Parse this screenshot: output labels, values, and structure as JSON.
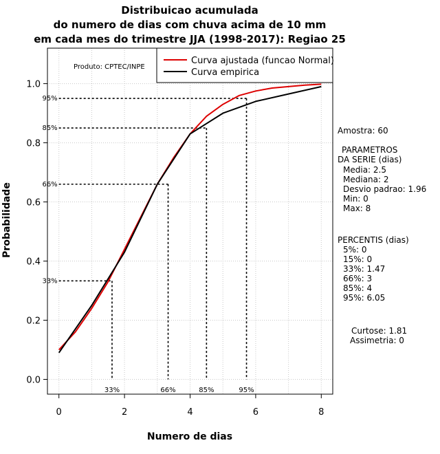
{
  "chart_data": {
    "type": "line",
    "title_lines": [
      "Distribuicao acumulada",
      "do numero de dias com chuva acima de 10 mm",
      "em cada mes do trimestre JJA (1998-2017): Regiao 25"
    ],
    "xlabel": "Numero de dias",
    "ylabel": "Probabilidade",
    "xlim": [
      -0.35,
      8.35
    ],
    "ylim": [
      -0.05,
      1.12
    ],
    "x_ticks": [
      0,
      2,
      4,
      6,
      8
    ],
    "x_tick_labels": [
      "0",
      "2",
      "4",
      "6",
      "8"
    ],
    "y_ticks": [
      0.0,
      0.2,
      0.4,
      0.6,
      0.8,
      1.0
    ],
    "y_tick_labels": [
      "0.0",
      "0.2",
      "0.4",
      "0.6",
      "0.8",
      "1.0"
    ],
    "grid": true,
    "legend_position": "top-right",
    "product_label": "Produto: CPTEC/INPE",
    "series": [
      {
        "name": "Curva ajustada (funcao Normal)",
        "color": "#dd0000",
        "x": [
          0,
          0.5,
          1,
          1.5,
          2,
          2.5,
          3,
          3.5,
          4,
          4.5,
          5,
          5.5,
          6,
          6.5,
          7,
          7.5,
          8
        ],
        "y": [
          0.1,
          0.16,
          0.24,
          0.33,
          0.44,
          0.55,
          0.66,
          0.75,
          0.83,
          0.89,
          0.93,
          0.96,
          0.975,
          0.985,
          0.99,
          0.995,
          0.998
        ]
      },
      {
        "name": "Curva empirica",
        "color": "#000000",
        "x": [
          0,
          1,
          2,
          3,
          4,
          5,
          6,
          7,
          8
        ],
        "y": [
          0.09,
          0.25,
          0.43,
          0.66,
          0.83,
          0.9,
          0.94,
          0.965,
          0.99
        ]
      }
    ],
    "percentile_guides": [
      {
        "label": "33%",
        "x": 1.62,
        "y": 0.333
      },
      {
        "label": "66%",
        "x": 3.33,
        "y": 0.66
      },
      {
        "label": "85%",
        "x": 4.5,
        "y": 0.85
      },
      {
        "label": "95%",
        "x": 5.72,
        "y": 0.95
      }
    ]
  },
  "side_panel": {
    "sample": "Amostra: 60",
    "params_title_1": "PARAMETROS",
    "params_title_2": "DA SERIE (dias)",
    "params": [
      "Media: 2.5",
      "Mediana: 2",
      "Desvio padrao: 1.96",
      "Min: 0",
      "Max: 8"
    ],
    "percentis_title": "PERCENTIS (dias)",
    "percentis": [
      "5%: 0",
      "15%: 0",
      "33%: 1.47",
      "66%: 3",
      "85%: 4",
      "95%: 6.05"
    ],
    "curtose": "Curtose: 1.81",
    "assimetria": "Assimetria: 0"
  }
}
